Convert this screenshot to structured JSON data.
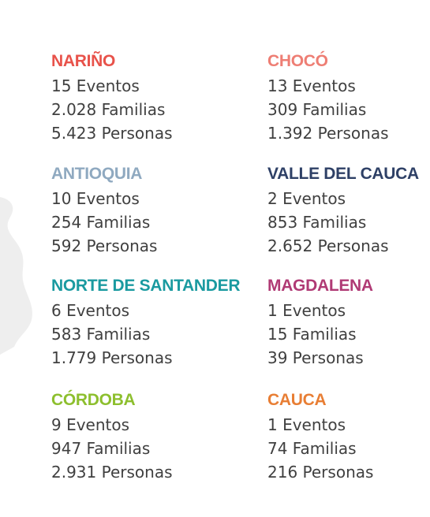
{
  "regions": [
    {
      "name": "NARIÑO",
      "color": "#e8524a",
      "eventos": "15 Eventos",
      "familias": "2.028 Familias",
      "personas": "5.423 Personas"
    },
    {
      "name": "CHOCÓ",
      "color": "#ee7e74",
      "eventos": "13 Eventos",
      "familias": "309 Familias",
      "personas": "1.392 Personas"
    },
    {
      "name": "ANTIOQUIA",
      "color": "#8fa9c0",
      "eventos": "10 Eventos",
      "familias": "254 Familias",
      "personas": "592 Personas"
    },
    {
      "name": "VALLE DEL CAUCA",
      "color": "#2e4066",
      "eventos": "2 Eventos",
      "familias": "853 Familias",
      "personas": "2.652 Personas"
    },
    {
      "name": "NORTE DE SANTANDER",
      "color": "#1a9aa0",
      "eventos": "6 Eventos",
      "familias": "583 Familias",
      "personas": "1.779 Personas"
    },
    {
      "name": "MAGDALENA",
      "color": "#b03a75",
      "eventos": "1 Eventos",
      "familias": "15 Familias",
      "personas": "39 Personas"
    },
    {
      "name": "CÓRDOBA",
      "color": "#8dbf2e",
      "eventos": "9 Eventos",
      "familias": "947 Familias",
      "personas": "2.931 Personas"
    },
    {
      "name": "CAUCA",
      "color": "#e87e34",
      "eventos": "1 Eventos",
      "familias": "74 Familias",
      "personas": "216 Personas"
    }
  ]
}
